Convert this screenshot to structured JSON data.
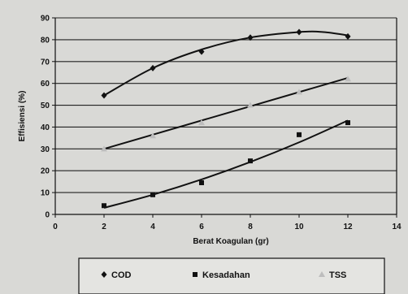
{
  "chart_data": {
    "type": "scatter",
    "xlabel": "Berat Koagulan (gr)",
    "ylabel": "Effisiensi (%)",
    "xlim": [
      0,
      14
    ],
    "ylim": [
      0,
      90
    ],
    "x_ticks": [
      "0",
      "2",
      "4",
      "6",
      "8",
      "10",
      "12",
      "14"
    ],
    "y_ticks": [
      "0",
      "10",
      "20",
      "30",
      "40",
      "50",
      "60",
      "70",
      "80",
      "90"
    ],
    "grid": "horizontal",
    "legend_position": "bottom",
    "series": [
      {
        "name": "COD",
        "marker": "diamond",
        "color": "#111111",
        "x": [
          2,
          4,
          6,
          8,
          10,
          12
        ],
        "values": [
          54.5,
          67,
          74.5,
          81,
          83.5,
          81.5
        ],
        "trend": {
          "type": "polynomial",
          "x": [
            2,
            4,
            6,
            8,
            10,
            11,
            12
          ],
          "values": [
            54.5,
            67,
            75.5,
            81,
            83.5,
            83.5,
            82
          ]
        }
      },
      {
        "name": "Kesadahan",
        "marker": "square",
        "color": "#111111",
        "x": [
          2,
          4,
          6,
          8,
          10,
          12
        ],
        "values": [
          4,
          9,
          14.5,
          24.5,
          36.5,
          42
        ],
        "trend": {
          "type": "polynomial",
          "x": [
            2,
            4,
            6,
            8,
            10,
            12
          ],
          "values": [
            3,
            9,
            16,
            24,
            33,
            43
          ]
        }
      },
      {
        "name": "TSS",
        "marker": "triangle",
        "color": "#bdbdbd",
        "x": [
          2,
          4,
          6,
          8,
          10,
          12
        ],
        "values": [
          30,
          36,
          42,
          50,
          56,
          62
        ],
        "trend": {
          "type": "linear",
          "x": [
            2,
            12
          ],
          "values": [
            30,
            62.5
          ]
        }
      }
    ]
  }
}
